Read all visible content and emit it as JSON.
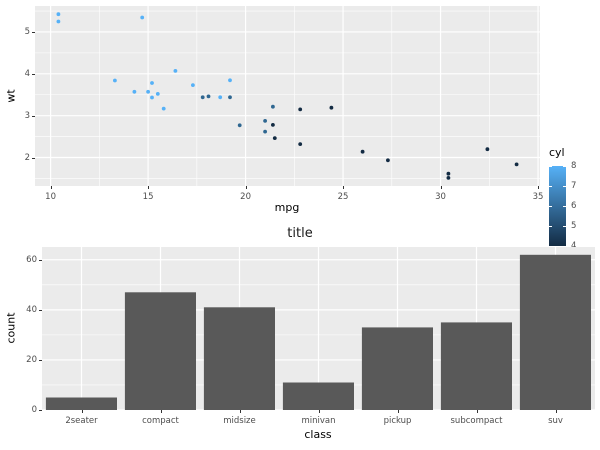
{
  "style": {
    "background": "#FFFFFF",
    "panel_background": "#EBEBEB",
    "grid_color": "#FFFFFF",
    "tick_label_color": "#4D4D4D",
    "axis_title_color": "#000000",
    "tick_mark_color": "#333333"
  },
  "chart_data": [
    {
      "type": "scatter",
      "title": "",
      "xlabel": "mpg",
      "ylabel": "wt",
      "x_ticks": [
        10,
        15,
        20,
        25,
        30,
        35
      ],
      "x_minor": [
        12.5,
        17.5,
        22.5,
        27.5,
        32.5
      ],
      "y_ticks": [
        2,
        3,
        4,
        5
      ],
      "y_minor": [
        1.5,
        2.5,
        3.5,
        4.5,
        5.5
      ],
      "xlim": [
        9.2,
        35.1
      ],
      "ylim": [
        1.32,
        5.62
      ],
      "point_color_by_cyl": {
        "4": "#132B43",
        "6": "#2F6791",
        "8": "#56B1F7"
      },
      "legend": {
        "title": "cyl",
        "ticks": [
          8,
          7,
          6,
          5,
          4
        ],
        "range": [
          4,
          8
        ],
        "gradient_top": "#56B1F7",
        "gradient_bottom": "#132B43"
      },
      "points_mpg_wt_cyl": [
        [
          21.0,
          2.62,
          6
        ],
        [
          21.0,
          2.875,
          6
        ],
        [
          22.8,
          2.32,
          4
        ],
        [
          21.4,
          3.215,
          6
        ],
        [
          18.7,
          3.44,
          8
        ],
        [
          18.1,
          3.46,
          6
        ],
        [
          14.3,
          3.57,
          8
        ],
        [
          24.4,
          3.19,
          4
        ],
        [
          22.8,
          3.15,
          4
        ],
        [
          19.2,
          3.44,
          6
        ],
        [
          17.8,
          3.44,
          6
        ],
        [
          16.4,
          4.07,
          8
        ],
        [
          17.3,
          3.73,
          8
        ],
        [
          15.2,
          3.78,
          8
        ],
        [
          10.4,
          5.25,
          8
        ],
        [
          10.4,
          5.424,
          8
        ],
        [
          14.7,
          5.345,
          8
        ],
        [
          32.4,
          2.2,
          4
        ],
        [
          30.4,
          1.615,
          4
        ],
        [
          33.9,
          1.835,
          4
        ],
        [
          21.5,
          2.465,
          4
        ],
        [
          15.5,
          3.52,
          8
        ],
        [
          15.2,
          3.435,
          8
        ],
        [
          13.3,
          3.84,
          8
        ],
        [
          19.2,
          3.845,
          8
        ],
        [
          27.3,
          1.935,
          4
        ],
        [
          26.0,
          2.14,
          4
        ],
        [
          30.4,
          1.513,
          4
        ],
        [
          15.8,
          3.17,
          8
        ],
        [
          19.7,
          2.77,
          6
        ],
        [
          15.0,
          3.57,
          8
        ],
        [
          21.4,
          2.78,
          4
        ]
      ]
    },
    {
      "type": "bar",
      "title": "title",
      "xlabel": "class",
      "ylabel": "count",
      "categories": [
        "2seater",
        "compact",
        "midsize",
        "minivan",
        "pickup",
        "subcompact",
        "suv"
      ],
      "values": [
        5,
        47,
        41,
        11,
        33,
        35,
        62
      ],
      "y_ticks": [
        0,
        20,
        40,
        60
      ],
      "y_minor": [
        10,
        30,
        50
      ],
      "ylim": [
        0,
        65.1
      ],
      "bar_color": "#595959"
    }
  ]
}
